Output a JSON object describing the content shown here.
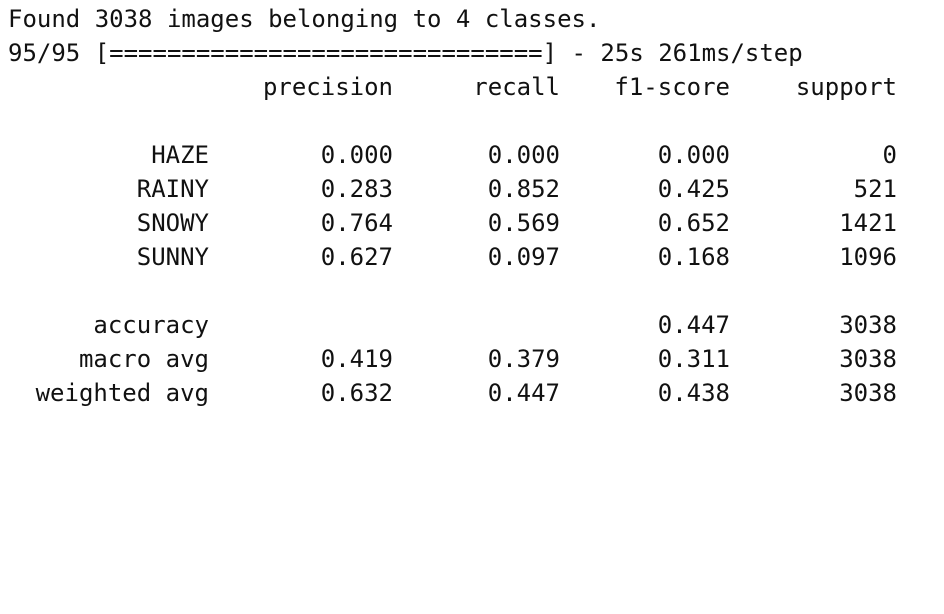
{
  "console": {
    "found_line": "Found 3038 images belonging to 4 classes.",
    "progress_line": "95/95 [==============================] - 25s 261ms/step"
  },
  "report": {
    "headers": {
      "precision": "precision",
      "recall": "recall",
      "f1": "f1-score",
      "support": "support"
    },
    "class_rows": [
      {
        "label": "HAZE",
        "precision": "0.000",
        "recall": "0.000",
        "f1": "0.000",
        "support": "0"
      },
      {
        "label": "RAINY",
        "precision": "0.283",
        "recall": "0.852",
        "f1": "0.425",
        "support": "521"
      },
      {
        "label": "SNOWY",
        "precision": "0.764",
        "recall": "0.569",
        "f1": "0.652",
        "support": "1421"
      },
      {
        "label": "SUNNY",
        "precision": "0.627",
        "recall": "0.097",
        "f1": "0.168",
        "support": "1096"
      }
    ],
    "summary_rows": [
      {
        "label": "accuracy",
        "precision": "",
        "recall": "",
        "f1": "0.447",
        "support": "3038"
      },
      {
        "label": "macro avg",
        "precision": "0.419",
        "recall": "0.379",
        "f1": "0.311",
        "support": "3038"
      },
      {
        "label": "weighted avg",
        "precision": "0.632",
        "recall": "0.447",
        "f1": "0.438",
        "support": "3038"
      }
    ]
  }
}
